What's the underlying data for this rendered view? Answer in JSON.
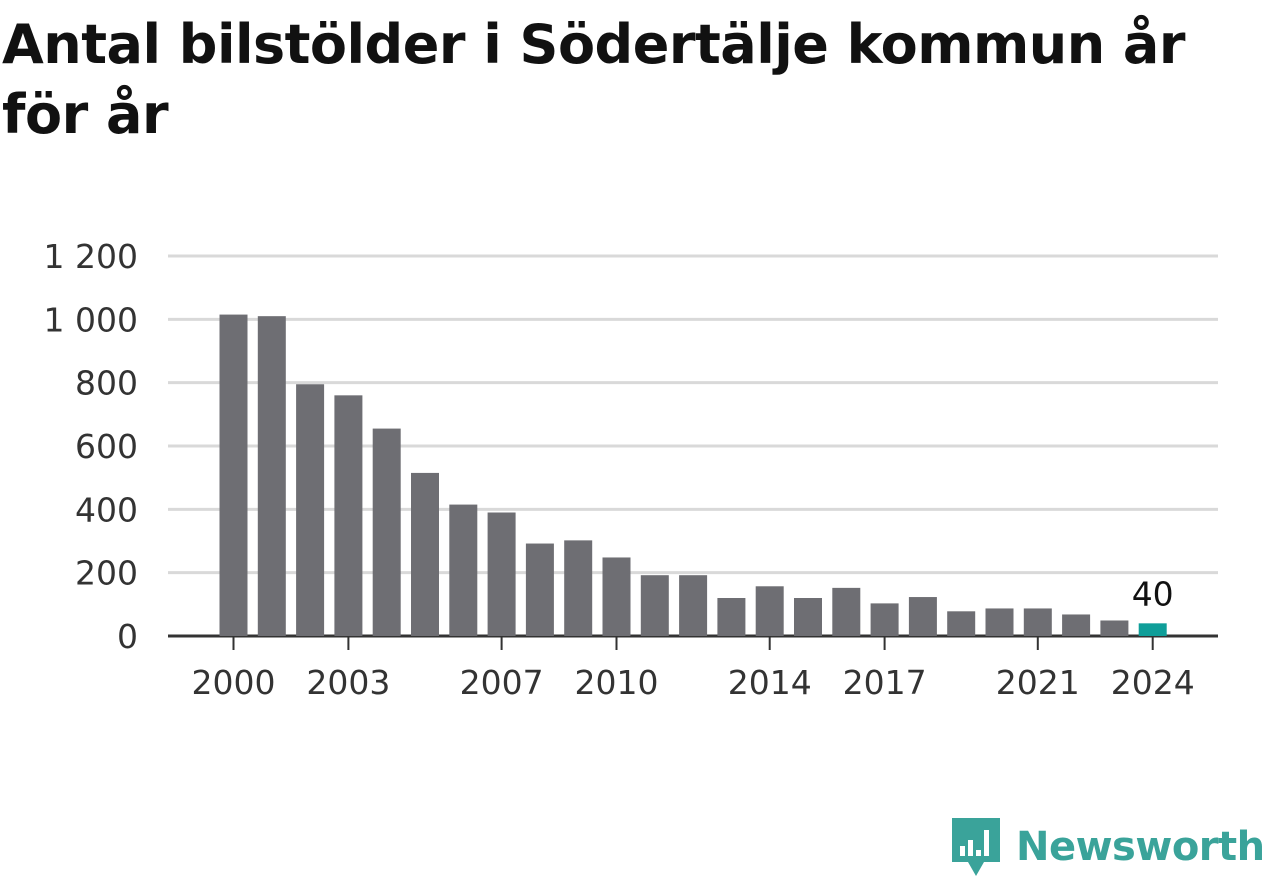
{
  "title": "Antal bilstölder i Södertälje kommun år för år",
  "brand": {
    "name": "Newsworthy",
    "icon": "newsworthy-logo-icon"
  },
  "colors": {
    "bar": "#6e6e73",
    "highlight": "#0f9e99",
    "grid": "#d9d9d9",
    "axis": "#333333",
    "text": "#333333",
    "brand": "#3aa39a"
  },
  "chart_data": {
    "type": "bar",
    "title": "Antal bilstölder i Södertälje kommun år för år",
    "xlabel": "",
    "ylabel": "",
    "categories": [
      "2000",
      "2001",
      "2002",
      "2003",
      "2004",
      "2005",
      "2006",
      "2007",
      "2008",
      "2009",
      "2010",
      "2011",
      "2012",
      "2013",
      "2014",
      "2015",
      "2016",
      "2017",
      "2018",
      "2019",
      "2020",
      "2021",
      "2022",
      "2023",
      "2024"
    ],
    "values": [
      1015,
      1010,
      795,
      760,
      655,
      515,
      415,
      390,
      292,
      302,
      248,
      192,
      192,
      120,
      157,
      120,
      152,
      103,
      123,
      78,
      87,
      87,
      68,
      49,
      40
    ],
    "ylim": [
      0,
      1200
    ],
    "yticks": [
      0,
      200,
      400,
      600,
      800,
      1000,
      1200
    ],
    "ytick_labels": [
      "0",
      "200",
      "400",
      "600",
      "800",
      "1 000",
      "1 200"
    ],
    "xtick_labels": [
      "2000",
      "2003",
      "2007",
      "2010",
      "2014",
      "2017",
      "2021",
      "2024"
    ],
    "highlight": {
      "category": "2024",
      "label": "40"
    },
    "grid": true,
    "legend": "none"
  }
}
